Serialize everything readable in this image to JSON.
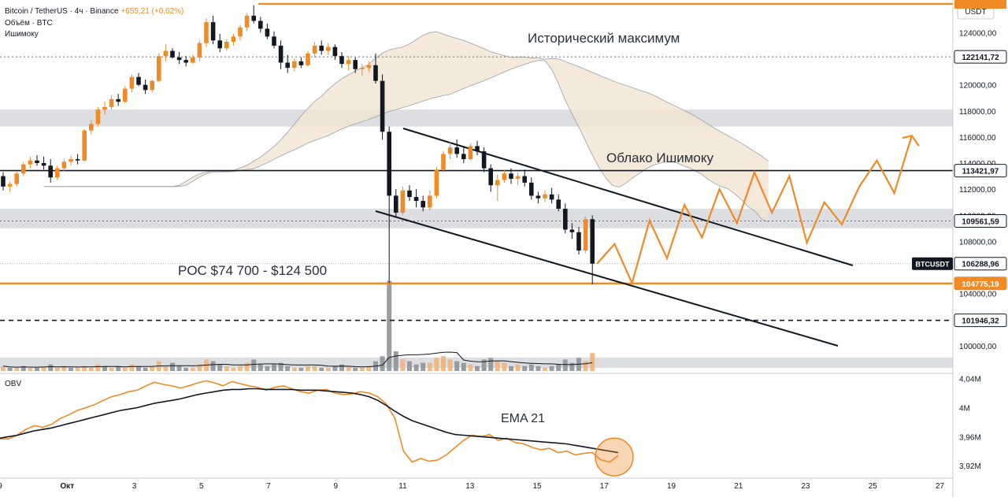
{
  "header": {
    "symbol": "Bitcoin / TetherUS · 4ч · Binance",
    "change": "+655,21 (+0,62%)",
    "volume_label": "Объём · BTC",
    "ichimoku_label": "Ишимоку"
  },
  "colors": {
    "accent": "#ef8a25",
    "bear": "#131722",
    "cloud_bull": "#f3e3d2",
    "cloud_bear": "#dcdcdc",
    "zone": "#d6d8dc",
    "axis_bg": "#ffffff",
    "price_tag": "#131722"
  },
  "chart_data": [
    {
      "type": "candlestick",
      "currency_label": "USDT",
      "price_ticks": [
        "124000,00",
        "120000,00",
        "118000,00",
        "116000,00",
        "114000,00",
        "112000,00",
        "110000,00",
        "108000,00",
        "104000,00",
        "100000,00"
      ],
      "price_tick_values": [
        124000,
        120000,
        118000,
        116000,
        114000,
        112000,
        110000,
        108000,
        104000,
        100000
      ],
      "x_ticks": [
        "9",
        "Окт",
        "3",
        "5",
        "7",
        "9",
        "11",
        "13",
        "15",
        "17",
        "19",
        "21",
        "23",
        "25",
        "27"
      ],
      "y_range": [
        98000,
        126500
      ],
      "levels": [
        {
          "label": "Исторический максимум",
          "value": 126200,
          "kind": "resistance"
        },
        {
          "label": "122141,72",
          "value": 122141.72,
          "kind": "dotted"
        },
        {
          "label": "113421,97",
          "value": 113421.97,
          "kind": "solid"
        },
        {
          "label": "109561,59",
          "value": 109561.59,
          "kind": "dotted"
        },
        {
          "label": "106288,96",
          "value": 106288.96,
          "kind": "current",
          "symbol": "BTCUSDT"
        },
        {
          "label": "104775,19",
          "value": 104775.19,
          "kind": "support"
        },
        {
          "label": "101946,32",
          "value": 101946.32,
          "kind": "dashed"
        }
      ],
      "zones": [
        {
          "from": 116800,
          "to": 118100
        },
        {
          "from": 109000,
          "to": 110500
        },
        {
          "from": 98300,
          "to": 99100
        }
      ],
      "annotations": [
        {
          "text": "Исторический максимум"
        },
        {
          "text": "Облако Ишимоку"
        },
        {
          "text": "POC $74 700 - $124 500"
        }
      ],
      "candles": [
        [
          113000,
          113300,
          111900,
          112200
        ],
        [
          112200,
          112600,
          111800,
          112400
        ],
        [
          112400,
          113400,
          112200,
          113200
        ],
        [
          113200,
          114100,
          113000,
          113900
        ],
        [
          113900,
          114500,
          113600,
          114200
        ],
        [
          114200,
          114600,
          113800,
          114000
        ],
        [
          114000,
          114500,
          113500,
          113800
        ],
        [
          113800,
          114300,
          112500,
          112900
        ],
        [
          112900,
          113800,
          112700,
          113600
        ],
        [
          113600,
          114300,
          113400,
          114100
        ],
        [
          114100,
          114600,
          113800,
          114300
        ],
        [
          114300,
          114700,
          113900,
          114200
        ],
        [
          114200,
          116600,
          114100,
          116500
        ],
        [
          116500,
          117300,
          116200,
          117000
        ],
        [
          117000,
          118300,
          116800,
          118100
        ],
        [
          118100,
          118700,
          117700,
          118300
        ],
        [
          118300,
          119200,
          118100,
          118900
        ],
        [
          118900,
          119300,
          118400,
          118700
        ],
        [
          118700,
          119900,
          118600,
          119700
        ],
        [
          119700,
          120800,
          119400,
          120600
        ],
        [
          120600,
          120900,
          119900,
          120000
        ],
        [
          120000,
          120400,
          119300,
          119600
        ],
        [
          119600,
          120400,
          119400,
          120300
        ],
        [
          120300,
          122400,
          120200,
          122200
        ],
        [
          122200,
          123100,
          121800,
          122600
        ],
        [
          122600,
          122800,
          122000,
          122100
        ],
        [
          122100,
          122500,
          121600,
          121900
        ],
        [
          121900,
          122200,
          121400,
          121700
        ],
        [
          121700,
          122300,
          121600,
          122100
        ],
        [
          122100,
          123400,
          121800,
          123200
        ],
        [
          123200,
          125100,
          122900,
          124800
        ],
        [
          124800,
          125300,
          123100,
          123400
        ],
        [
          123400,
          123900,
          122500,
          122800
        ],
        [
          122800,
          123500,
          122600,
          123300
        ],
        [
          123300,
          123900,
          123000,
          123700
        ],
        [
          123700,
          124600,
          123400,
          124400
        ],
        [
          124400,
          125500,
          124100,
          125300
        ],
        [
          125300,
          126100,
          124700,
          124900
        ],
        [
          124900,
          125200,
          124000,
          124300
        ],
        [
          124300,
          124700,
          123500,
          123700
        ],
        [
          123700,
          124100,
          122800,
          123000
        ],
        [
          123000,
          123400,
          121200,
          121700
        ],
        [
          121700,
          122300,
          120900,
          121300
        ],
        [
          121300,
          122000,
          121000,
          121800
        ],
        [
          121800,
          122100,
          121300,
          121500
        ],
        [
          121500,
          122600,
          121400,
          122400
        ],
        [
          122400,
          123300,
          122100,
          123000
        ],
        [
          123000,
          123400,
          122300,
          122600
        ],
        [
          122600,
          123200,
          122300,
          122900
        ],
        [
          122900,
          123100,
          121900,
          122200
        ],
        [
          122200,
          122500,
          121300,
          121600
        ],
        [
          121600,
          122200,
          121100,
          121900
        ],
        [
          121900,
          122100,
          120900,
          121200
        ],
        [
          121200,
          121600,
          120700,
          121300
        ],
        [
          121300,
          121800,
          121000,
          121500
        ],
        [
          121500,
          122400,
          120100,
          120300
        ],
        [
          120300,
          120800,
          115800,
          116400
        ],
        [
          116400,
          116800,
          104800,
          111500
        ],
        [
          111500,
          112000,
          109800,
          110200
        ],
        [
          110200,
          112200,
          110000,
          111900
        ],
        [
          111900,
          112300,
          111100,
          111400
        ],
        [
          111400,
          112000,
          110600,
          111100
        ],
        [
          111100,
          111500,
          110300,
          110600
        ],
        [
          110600,
          111900,
          110400,
          111500
        ],
        [
          111500,
          113700,
          111300,
          113500
        ],
        [
          113500,
          114900,
          113300,
          114700
        ],
        [
          114700,
          115600,
          114300,
          115200
        ],
        [
          115200,
          115800,
          114400,
          114700
        ],
        [
          114700,
          115300,
          114000,
          114300
        ],
        [
          114300,
          115500,
          114200,
          115300
        ],
        [
          115300,
          115700,
          114600,
          114900
        ],
        [
          114900,
          115200,
          113300,
          113600
        ],
        [
          113600,
          113900,
          111800,
          112300
        ],
        [
          112300,
          113100,
          111100,
          112700
        ],
        [
          112700,
          113500,
          112500,
          113200
        ],
        [
          113200,
          113600,
          112400,
          112800
        ],
        [
          112800,
          113300,
          112300,
          113000
        ],
        [
          113000,
          113500,
          112200,
          112500
        ],
        [
          112500,
          112900,
          111200,
          111500
        ],
        [
          111500,
          111800,
          110900,
          111300
        ],
        [
          111300,
          111900,
          111000,
          111600
        ],
        [
          111600,
          112100,
          110900,
          111200
        ],
        [
          111200,
          111600,
          110300,
          110500
        ],
        [
          110500,
          110900,
          108600,
          108900
        ],
        [
          108900,
          109400,
          108200,
          108700
        ],
        [
          108700,
          109100,
          107000,
          107300
        ],
        [
          107300,
          109900,
          107100,
          109700
        ],
        [
          109700,
          110000,
          104700,
          106289
        ]
      ],
      "volume": [
        [
          3,
          0
        ],
        [
          2,
          1
        ],
        [
          2,
          0
        ],
        [
          3,
          1
        ],
        [
          2,
          0
        ],
        [
          2,
          1
        ],
        [
          3,
          0
        ],
        [
          4,
          1
        ],
        [
          2,
          0
        ],
        [
          3,
          0
        ],
        [
          2,
          1
        ],
        [
          2,
          0
        ],
        [
          3,
          0
        ],
        [
          2,
          0
        ],
        [
          4,
          0
        ],
        [
          3,
          1
        ],
        [
          2,
          0
        ],
        [
          3,
          1
        ],
        [
          2,
          0
        ],
        [
          4,
          0
        ],
        [
          3,
          1
        ],
        [
          2,
          1
        ],
        [
          3,
          0
        ],
        [
          6,
          0
        ],
        [
          3,
          0
        ],
        [
          5,
          1
        ],
        [
          3,
          1
        ],
        [
          2,
          1
        ],
        [
          2,
          0
        ],
        [
          4,
          0
        ],
        [
          7,
          0
        ],
        [
          6,
          1
        ],
        [
          4,
          1
        ],
        [
          3,
          0
        ],
        [
          2,
          0
        ],
        [
          3,
          0
        ],
        [
          5,
          0
        ],
        [
          7,
          1
        ],
        [
          4,
          1
        ],
        [
          3,
          1
        ],
        [
          4,
          1
        ],
        [
          5,
          1
        ],
        [
          3,
          1
        ],
        [
          2,
          0
        ],
        [
          2,
          1
        ],
        [
          3,
          0
        ],
        [
          3,
          0
        ],
        [
          2,
          1
        ],
        [
          2,
          0
        ],
        [
          3,
          1
        ],
        [
          4,
          1
        ],
        [
          3,
          0
        ],
        [
          2,
          1
        ],
        [
          2,
          0
        ],
        [
          3,
          0
        ],
        [
          6,
          1
        ],
        [
          9,
          1
        ],
        [
          55,
          1
        ],
        [
          12,
          1
        ],
        [
          7,
          0
        ],
        [
          6,
          1
        ],
        [
          4,
          1
        ],
        [
          5,
          1
        ],
        [
          5,
          0
        ],
        [
          8,
          0
        ],
        [
          9,
          0
        ],
        [
          7,
          0
        ],
        [
          6,
          1
        ],
        [
          5,
          1
        ],
        [
          4,
          0
        ],
        [
          3,
          1
        ],
        [
          7,
          1
        ],
        [
          8,
          1
        ],
        [
          6,
          0
        ],
        [
          5,
          0
        ],
        [
          3,
          1
        ],
        [
          4,
          0
        ],
        [
          3,
          1
        ],
        [
          4,
          1
        ],
        [
          3,
          1
        ],
        [
          2,
          0
        ],
        [
          3,
          1
        ],
        [
          4,
          1
        ],
        [
          7,
          1
        ],
        [
          5,
          1
        ],
        [
          8,
          1
        ],
        [
          6,
          0
        ],
        [
          11,
          0
        ]
      ],
      "projection": [
        [
          106289
        ],
        [
          107800
        ],
        [
          104800
        ],
        [
          109600
        ],
        [
          106700
        ],
        [
          110800
        ],
        [
          108300
        ],
        [
          112000
        ],
        [
          109400
        ],
        [
          113300
        ],
        [
          110200
        ],
        [
          113000
        ],
        [
          107900
        ],
        [
          111000
        ],
        [
          109300
        ],
        [
          112200
        ],
        [
          114200
        ],
        [
          111700
        ],
        [
          116100
        ]
      ]
    },
    {
      "type": "line",
      "title": "OBV",
      "y_ticks": [
        "4,04M",
        "4M",
        "3,96M",
        "3,92M"
      ],
      "y_tick_values": [
        4.04,
        4.0,
        3.96,
        3.92
      ],
      "y_range": [
        3.905,
        4.045
      ],
      "ema_label": "EMA 21",
      "series": [
        {
          "values": [
            3.957,
            3.957,
            3.962,
            3.97,
            3.975,
            3.973,
            3.977,
            3.985,
            3.99,
            3.996,
            4.0,
            4.004,
            4.01,
            4.015,
            4.018,
            4.022,
            4.024,
            4.03,
            4.035,
            4.032,
            4.03,
            4.027,
            4.03,
            4.034,
            4.037,
            4.034,
            4.03,
            4.036,
            4.033,
            4.03,
            4.028,
            4.024,
            4.028,
            4.03,
            4.026,
            4.022,
            4.02,
            4.024,
            4.025,
            4.02,
            4.018,
            4.019,
            4.022,
            4.02,
            4.015,
            4.005,
            3.985,
            3.94,
            3.925,
            3.93,
            3.926,
            3.928,
            3.935,
            3.945,
            3.955,
            3.962,
            3.96,
            3.963,
            3.955,
            3.958,
            3.952,
            3.95,
            3.945,
            3.942,
            3.944,
            3.938,
            3.94,
            3.935,
            3.937,
            3.938,
            3.928,
            3.925,
            3.934
          ]
        },
        {
          "values": [
            3.958,
            3.96,
            3.962,
            3.965,
            3.968,
            3.97,
            3.972,
            3.975,
            3.978,
            3.981,
            3.984,
            3.987,
            3.99,
            3.993,
            3.996,
            3.998,
            4.0,
            4.003,
            4.006,
            4.008,
            4.01,
            4.012,
            4.015,
            4.018,
            4.02,
            4.022,
            4.024,
            4.025,
            4.025,
            4.026,
            4.026,
            4.025,
            4.025,
            4.025,
            4.025,
            4.024,
            4.024,
            4.024,
            4.023,
            4.022,
            4.021,
            4.02,
            4.018,
            4.015,
            4.01,
            4.003,
            3.995,
            3.988,
            3.982,
            3.978,
            3.974,
            3.97,
            3.966,
            3.963,
            3.962,
            3.961,
            3.96,
            3.959,
            3.958,
            3.957,
            3.956,
            3.955,
            3.954,
            3.953,
            3.952,
            3.951,
            3.95,
            3.948,
            3.946,
            3.944,
            3.942,
            3.94,
            3.938
          ]
        }
      ]
    }
  ]
}
